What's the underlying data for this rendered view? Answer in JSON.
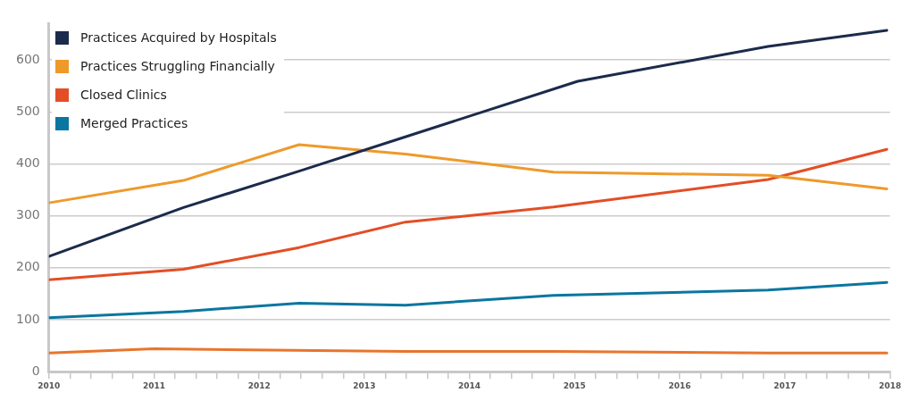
{
  "chart_data": {
    "type": "line",
    "x": [
      2010,
      2011.28,
      2012.38,
      2013.39,
      2014.8,
      2016.84,
      2017.97
    ],
    "series": [
      {
        "name": "Practices Acquired by Hospitals",
        "color": "#1c2b4c",
        "x": [
          2010,
          2011.28,
          2012.38,
          2013.39,
          2015.03,
          2016.84,
          2017.97
        ],
        "values": [
          222,
          316,
          386,
          452,
          559,
          626,
          657
        ]
      },
      {
        "name": "Practices Struggling Financially",
        "color": "#ee9a2b",
        "values": [
          325,
          368,
          437,
          419,
          384,
          378,
          352
        ]
      },
      {
        "name": "Closed Clinics",
        "color": "#e34e26",
        "values": [
          177,
          197,
          239,
          288,
          317,
          370,
          428
        ]
      },
      {
        "name": "Merged Practices",
        "color": "#0b76a0",
        "values": [
          104,
          116,
          132,
          128,
          147,
          157,
          172
        ]
      },
      {
        "color": "#e8752d",
        "x": [
          2010,
          2011,
          2013.39,
          2014.8,
          2016.84,
          2017.97
        ],
        "values": [
          36,
          44,
          39,
          39,
          36,
          36
        ]
      }
    ],
    "xlim": [
      2010,
      2018
    ],
    "xticks": [
      2010,
      {
        "value": 2010.2,
        "label": null
      },
      {
        "value": 2010.4,
        "label": null
      },
      {
        "value": 2010.6,
        "label": null
      },
      {
        "value": 2010.8,
        "label": null
      },
      2011,
      {
        "value": 2011.2,
        "label": null
      },
      {
        "value": 2011.4,
        "label": null
      },
      {
        "value": 2011.6,
        "label": null
      },
      {
        "value": 2011.8,
        "label": null
      },
      2012,
      {
        "value": 2012.2,
        "label": null
      },
      {
        "value": 2012.4,
        "label": null
      },
      {
        "value": 2012.6,
        "label": null
      },
      {
        "value": 2012.8,
        "label": null
      },
      2013,
      {
        "value": 2013.2,
        "label": null
      },
      {
        "value": 2013.4,
        "label": null
      },
      {
        "value": 2013.6,
        "label": null
      },
      {
        "value": 2013.8,
        "label": null
      },
      2014,
      {
        "value": 2014.2,
        "label": null
      },
      {
        "value": 2014.4,
        "label": null
      },
      {
        "value": 2014.6,
        "label": null
      },
      {
        "value": 2014.8,
        "label": null
      },
      2015,
      {
        "value": 2015.2,
        "label": null
      },
      {
        "value": 2015.4,
        "label": null
      },
      {
        "value": 2015.6,
        "label": null
      },
      {
        "value": 2015.8,
        "label": null
      },
      2016,
      {
        "value": 2016.2,
        "label": null
      },
      {
        "value": 2016.4,
        "label": null
      },
      {
        "value": 2016.6,
        "label": null
      },
      {
        "value": 2016.8,
        "label": null
      },
      2017,
      {
        "value": 2017.2,
        "label": null
      },
      {
        "value": 2017.4,
        "label": null
      },
      {
        "value": 2017.6,
        "label": null
      },
      {
        "value": 2017.8,
        "label": null
      },
      2018
    ],
    "ylim": [
      0,
      670
    ],
    "yticks": [
      0,
      100,
      200,
      300,
      400,
      500,
      600
    ],
    "grid": "y",
    "legend": "top left",
    "marker": "none",
    "line_style": "solid"
  }
}
